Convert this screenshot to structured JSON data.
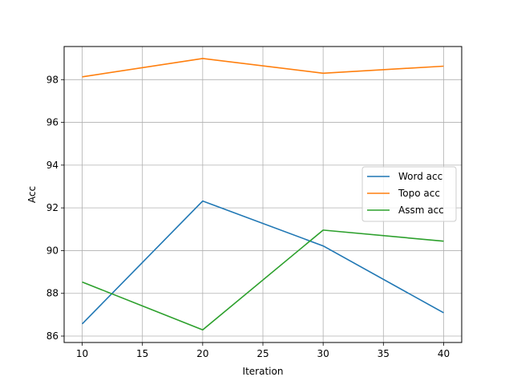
{
  "chart_data": {
    "type": "line",
    "title": "",
    "xlabel": "Iteration",
    "ylabel": "Acc",
    "x": [
      10,
      20,
      30,
      40
    ],
    "xlim": [
      8.5,
      41.5
    ],
    "ylim": [
      85.7,
      99.55
    ],
    "xticks": [
      "10",
      "15",
      "20",
      "25",
      "30",
      "35",
      "40"
    ],
    "yticks": [
      "86",
      "88",
      "90",
      "92",
      "94",
      "96",
      "98"
    ],
    "grid": true,
    "legend_position": "center-right",
    "series": [
      {
        "name": "Word acc",
        "color": "#1f77b4",
        "values": [
          86.57,
          92.32,
          90.22,
          87.09
        ]
      },
      {
        "name": "Topo acc",
        "color": "#ff7f0e",
        "values": [
          98.13,
          98.99,
          98.3,
          98.63
        ]
      },
      {
        "name": "Assm acc",
        "color": "#2ca02c",
        "values": [
          88.53,
          86.29,
          90.96,
          90.44
        ]
      }
    ]
  }
}
